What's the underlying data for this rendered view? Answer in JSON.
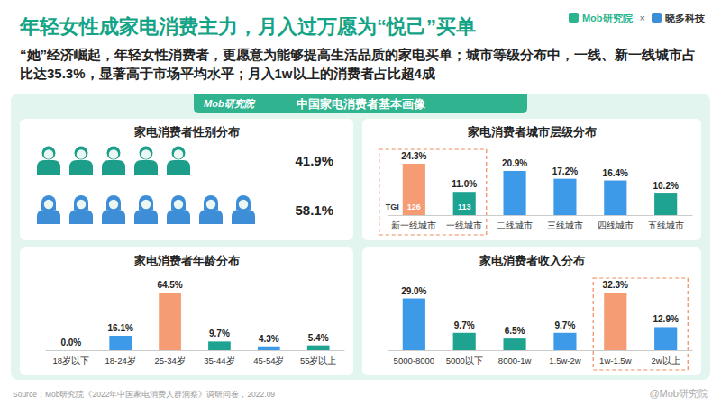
{
  "header": {
    "title": "年轻女性成家电消费主力，月入过万愿为“悦己”买单",
    "subtitle": "“她”经济崛起，年轻女性消费者，更愿意为能够提高生活品质的家电买单；城市等级分布中，一线、新一线城市占比达35.3%，显著高于市场平均水平；月入1w以上的消费者占比超4成",
    "logo": "Mob研究院",
    "separator": "×",
    "partner": "晓多科技"
  },
  "banner": {
    "logo": "Mob研究院",
    "title": "中国家电消费者基本画像"
  },
  "chart_data": [
    {
      "type": "pictograph",
      "title": "家电消费者性别分布",
      "categories": [
        null,
        null
      ],
      "values": [
        41.9,
        58.1
      ],
      "value_labels": [
        "41.9%",
        "58.1%"
      ],
      "colors": [
        "#1c9e8b",
        "#3d8ed6"
      ],
      "data_labels": true
    },
    {
      "type": "bar",
      "title": "家电消费者城市层级分布",
      "categories": [
        "新一线城市",
        "一线城市",
        "二线城市",
        "三线城市",
        "四线城市",
        "五线城市"
      ],
      "values": [
        24.3,
        11.0,
        20.9,
        17.2,
        16.4,
        10.2
      ],
      "value_labels": [
        "24.3%",
        "11.0%",
        "20.9%",
        "17.2%",
        "16.4%",
        "10.2%"
      ],
      "colors": [
        "#f59c74",
        "#1fa391",
        "#3d9ae8",
        "#3d9ae8",
        "#3d9ae8",
        "#1fa391"
      ],
      "data_labels": true,
      "tick_labels": "x",
      "tgi": {
        "label": "TGI",
        "values": [
          126,
          113,
          null,
          null,
          null,
          null
        ]
      }
    },
    {
      "type": "bar",
      "title": "家电消费者年龄分布",
      "categories": [
        "18岁以下",
        "18-24岁",
        "25-34岁",
        "35-44岁",
        "45-54岁",
        "55岁以上"
      ],
      "values": [
        0.0,
        16.1,
        64.5,
        9.7,
        4.3,
        5.4
      ],
      "value_labels": [
        "0.0%",
        "16.1%",
        "64.5%",
        "9.7%",
        "4.3%",
        "5.4%"
      ],
      "colors": [
        "#3d9ae8",
        "#3d9ae8",
        "#f59c74",
        "#1fa391",
        "#3d9ae8",
        "#1fa391"
      ],
      "data_labels": true,
      "tick_labels": "x"
    },
    {
      "type": "bar",
      "title": "家电消费者收入分布",
      "categories": [
        "5000-8000",
        "5000以下",
        "8000-1w",
        "1.5w-2w",
        "1w-1.5w",
        "2w以上"
      ],
      "values": [
        29.0,
        9.7,
        6.5,
        9.7,
        32.3,
        12.9
      ],
      "value_labels": [
        "29.0%",
        "9.7%",
        "6.5%",
        "9.7%",
        "32.3%",
        "12.9%"
      ],
      "colors": [
        "#3d9ae8",
        "#1fa391",
        "#1fa391",
        "#3d9ae8",
        "#f59c74",
        "#3d9ae8"
      ],
      "data_labels": true,
      "tick_labels": "x"
    }
  ],
  "footer": {
    "source": "Source：Mob研究院《2022年中国家电消费人群洞察》调研问卷，2022.09",
    "watermark": "@Mob研究院"
  }
}
